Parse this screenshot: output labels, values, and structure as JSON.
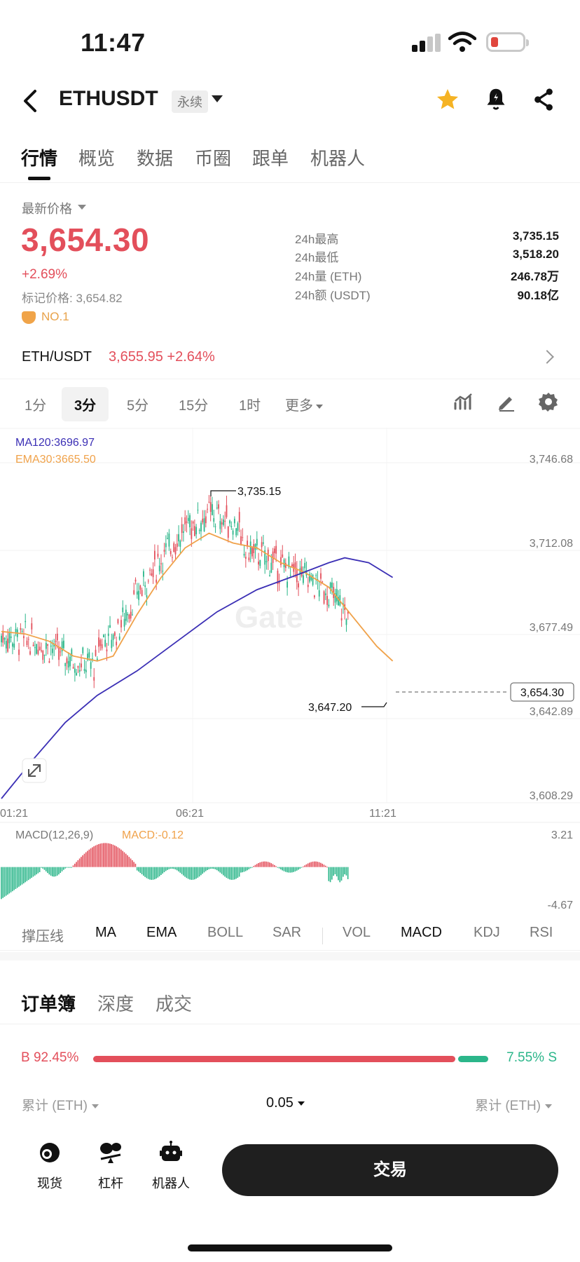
{
  "status_bar": {
    "time": "11:47"
  },
  "header": {
    "symbol": "ETHUSDT",
    "contract_type": "永续"
  },
  "tabs": [
    "行情",
    "概览",
    "数据",
    "币圈",
    "跟单",
    "机器人"
  ],
  "price_panel": {
    "label": "最新价格",
    "last_price": "3,654.30",
    "change_pct": "+2.69%",
    "mark_price": "标记价格: 3,654.82",
    "rank": "NO.1",
    "stats": [
      {
        "label": "24h最高",
        "value": "3,735.15"
      },
      {
        "label": "24h最低",
        "value": "3,518.20"
      },
      {
        "label": "24h量 (ETH)",
        "value": "246.78万"
      },
      {
        "label": "24h额 (USDT)",
        "value": "90.18亿"
      }
    ]
  },
  "spot_row": {
    "symbol": "ETH/USDT",
    "price": "3,655.95",
    "change": "+2.64%"
  },
  "timeframes": [
    "1分",
    "3分",
    "5分",
    "15分",
    "1时",
    "更多"
  ],
  "chart": {
    "ma_label": "MA120:3696.97",
    "ema_label": "EMA30:3665.50",
    "y_ticks": [
      "3,746.68",
      "3,712.08",
      "3,677.49",
      "3,642.89",
      "3,608.29"
    ],
    "x_ticks": [
      "01:21",
      "06:21",
      "11:21"
    ],
    "high_label": "3,735.15",
    "low_label": "3,647.20",
    "current_tag": "3,654.30",
    "macd_label": "MACD(12,26,9)",
    "macd_value": "MACD:-0.12",
    "macd_max": "3.21",
    "macd_min": "-4.67",
    "colors": {
      "up": "#e34f5b",
      "down": "#2bb68a",
      "ma": "#3b2fb5",
      "ema": "#f0a24a"
    }
  },
  "chart_data": {
    "type": "line",
    "title": "",
    "xlabel": "",
    "ylabel": "",
    "ylim": [
      3608.29,
      3746.68
    ],
    "x": [
      "01:21",
      "06:21",
      "11:21"
    ],
    "series": [
      {
        "name": "MA120",
        "points": [
          [
            0,
            3610
          ],
          [
            20,
            3626
          ],
          [
            40,
            3641
          ],
          [
            60,
            3652
          ],
          [
            85,
            3662
          ],
          [
            110,
            3674
          ],
          [
            135,
            3686
          ],
          [
            160,
            3695
          ],
          [
            185,
            3701
          ],
          [
            205,
            3706
          ],
          [
            215,
            3708
          ],
          [
            230,
            3706
          ],
          [
            245,
            3700
          ]
        ]
      },
      {
        "name": "EMA30",
        "points": [
          [
            0,
            3678
          ],
          [
            15,
            3677
          ],
          [
            30,
            3674
          ],
          [
            45,
            3668
          ],
          [
            60,
            3666
          ],
          [
            70,
            3668
          ],
          [
            85,
            3685
          ],
          [
            100,
            3700
          ],
          [
            115,
            3712
          ],
          [
            130,
            3718
          ],
          [
            145,
            3714
          ],
          [
            160,
            3712
          ],
          [
            175,
            3706
          ],
          [
            190,
            3702
          ],
          [
            205,
            3696
          ],
          [
            220,
            3684
          ],
          [
            235,
            3672
          ],
          [
            245,
            3666
          ]
        ]
      }
    ],
    "macd_range": [
      -4.67,
      3.21
    ],
    "annotations": {
      "high": 3735.15,
      "low": 3647.2,
      "last": 3654.3
    }
  },
  "indicators": [
    "撑压线",
    "MA",
    "EMA",
    "BOLL",
    "SAR",
    "VOL",
    "MACD",
    "KDJ",
    "RSI"
  ],
  "order_book": {
    "tabs": [
      "订单簿",
      "深度",
      "成交"
    ],
    "buy_ratio": "B 92.45%",
    "sell_ratio": "7.55% S",
    "buy_share": 0.9245,
    "left_header": "累计 (ETH)",
    "step": "0.05",
    "right_header": "累计 (ETH)"
  },
  "bottom_nav": {
    "items": [
      "现货",
      "杠杆",
      "机器人"
    ],
    "trade_button": "交易"
  }
}
